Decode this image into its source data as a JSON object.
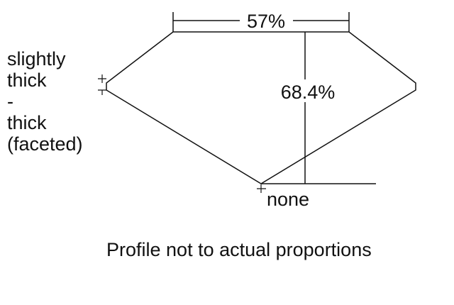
{
  "girdle_label": [
    "slightly",
    "thick",
    "-",
    "thick",
    "(faceted)"
  ],
  "table_percent": "57%",
  "depth_percent": "68.4%",
  "culet_label": "none",
  "caption": "Profile not to actual proportions"
}
